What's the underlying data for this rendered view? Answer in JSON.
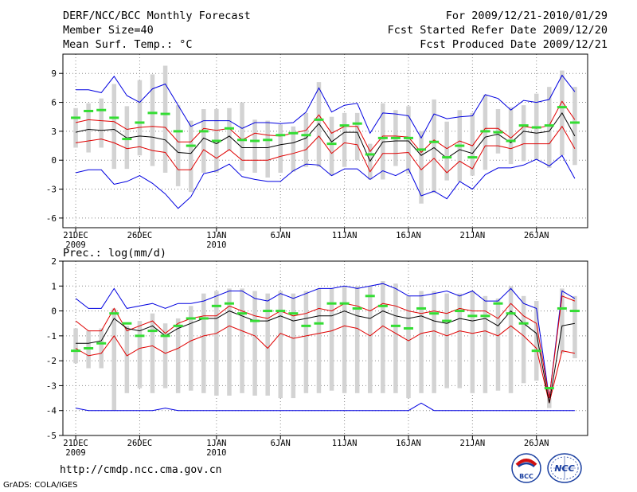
{
  "header": {
    "title": "DERF/NCC/BCC Monthly Forecast",
    "member_size": "Member Size=40",
    "variable": "Mean Surf. Temp.: °C",
    "period": "For 2009/12/21-2010/01/29",
    "start_date": "Fcst Started Refer Date 2009/12/20",
    "produced_date": "Fcst Produced Date 2009/12/21"
  },
  "footer": {
    "url": "http://cmdp.ncc.cma.gov.cn",
    "grads": "GrADS: COLA/IGES"
  },
  "logos": {
    "bcc": "BCC",
    "ncc": "NCC"
  },
  "colors": {
    "box": "#d3d3d3",
    "median": "#000000",
    "quartile": "#e00000",
    "extreme": "#0000e0",
    "observed": "#33dd33"
  },
  "chart_data": [
    {
      "type": "boxplot",
      "title": "Mean Surf. Temp.: °C",
      "ylim": [
        -7,
        11
      ],
      "yticks": [
        -6,
        -3,
        0,
        3,
        6,
        9
      ],
      "ytick_labels": [
        "-6",
        "-3",
        "0",
        "3",
        "6",
        "9"
      ],
      "xlim": [
        0,
        41
      ],
      "xtick_positions": [
        1,
        6,
        12,
        17,
        22,
        27,
        32,
        37
      ],
      "xtick_labels": [
        "21DEC",
        "26DEC",
        "1JAN",
        "6JAN",
        "11JAN",
        "16JAN",
        "21JAN",
        "26JAN"
      ],
      "xtick_sublabels": [
        "2009",
        "",
        "2010",
        "",
        "",
        "",
        "",
        ""
      ],
      "days": 40,
      "max": [
        7.3,
        7.3,
        7.0,
        8.7,
        6.7,
        6.0,
        7.4,
        7.9,
        5.7,
        3.5,
        4.1,
        4.1,
        4.1,
        3.3,
        3.9,
        3.9,
        3.8,
        3.9,
        5.0,
        7.5,
        5.0,
        5.7,
        5.9,
        2.8,
        4.9,
        4.8,
        4.6,
        2.3,
        4.8,
        4.3,
        4.5,
        4.6,
        6.8,
        6.4,
        5.2,
        6.2,
        6.0,
        6.3,
        8.8,
        7.1
      ],
      "q3": [
        3.9,
        4.2,
        4.1,
        4.0,
        3.2,
        3.4,
        3.5,
        3.4,
        1.9,
        1.9,
        3.3,
        3.1,
        3.3,
        2.1,
        2.8,
        2.6,
        2.5,
        2.8,
        3.1,
        4.7,
        2.8,
        3.5,
        3.5,
        0.9,
        2.5,
        2.5,
        2.4,
        0.8,
        2.1,
        1.2,
        2.0,
        1.5,
        3.3,
        3.3,
        2.3,
        3.5,
        3.3,
        3.6,
        6.1,
        4.2
      ],
      "median": [
        2.9,
        3.2,
        3.1,
        3.2,
        2.3,
        2.5,
        2.4,
        2.1,
        0.8,
        0.7,
        2.3,
        1.7,
        2.5,
        1.3,
        1.3,
        1.3,
        1.6,
        1.8,
        2.3,
        3.8,
        1.9,
        2.9,
        2.9,
        -0.1,
        1.9,
        2.0,
        2.0,
        0.5,
        1.3,
        0.2,
        1.1,
        0.7,
        2.4,
        2.7,
        1.8,
        3.0,
        2.8,
        3.0,
        4.9,
        2.5
      ],
      "q1": [
        1.8,
        2.0,
        2.2,
        1.8,
        1.2,
        1.4,
        1.0,
        0.8,
        -1.0,
        -1.0,
        1.1,
        0.2,
        1.1,
        0.0,
        0.0,
        0.0,
        0.4,
        0.7,
        1.1,
        2.5,
        0.7,
        1.8,
        1.6,
        -1.2,
        0.7,
        0.7,
        0.8,
        -1.0,
        0.2,
        -1.3,
        -0.1,
        -0.9,
        1.5,
        1.5,
        1.2,
        1.7,
        1.7,
        1.7,
        3.5,
        1.2
      ],
      "min": [
        -1.3,
        -1.0,
        -1.0,
        -2.5,
        -2.2,
        -1.6,
        -2.4,
        -3.5,
        -5.0,
        -3.8,
        -1.4,
        -1.1,
        -0.4,
        -1.7,
        -2.0,
        -2.2,
        -2.2,
        -1.1,
        -0.4,
        -0.5,
        -1.6,
        -0.9,
        -0.9,
        -2.0,
        -1.1,
        -1.6,
        -0.9,
        -3.7,
        -3.2,
        -4.0,
        -2.2,
        -3.0,
        -1.5,
        -0.8,
        -0.8,
        -0.5,
        0.1,
        -0.6,
        0.5,
        -1.9
      ],
      "box_top": [
        5.4,
        5.9,
        6.4,
        7.9,
        5.6,
        8.3,
        8.9,
        9.8,
        5.7,
        4.1,
        5.3,
        5.3,
        5.4,
        6.0,
        4.2,
        4.1,
        3.7,
        3.5,
        4.9,
        8.1,
        4.5,
        4.9,
        4.9,
        1.7,
        5.9,
        5.2,
        5.6,
        3.0,
        6.3,
        4.0,
        5.2,
        4.9,
        6.8,
        5.3,
        5.5,
        5.7,
        6.9,
        7.6,
        9.3,
        7.6
      ],
      "box_bottom": [
        1.3,
        0.8,
        1.3,
        -0.9,
        -0.9,
        0.5,
        -0.6,
        -1.3,
        -2.7,
        -3.3,
        -1.3,
        -1.3,
        1.0,
        -1.1,
        -1.3,
        -1.8,
        -1.3,
        -1.2,
        -0.7,
        -0.7,
        -1.6,
        -0.7,
        0.0,
        -2.0,
        -2.0,
        -0.6,
        -1.4,
        -4.5,
        -3.4,
        -2.1,
        -2.2,
        -1.6,
        -1.0,
        0.7,
        -0.4,
        -0.1,
        0.0,
        -0.8,
        0.5,
        -0.5
      ],
      "observed": [
        4.4,
        5.1,
        5.2,
        4.4,
        2.2,
        3.9,
        4.9,
        4.8,
        3.0,
        1.5,
        3.0,
        2.0,
        3.3,
        2.1,
        2.0,
        2.1,
        2.6,
        2.8,
        2.6,
        4.2,
        1.7,
        3.6,
        3.8,
        0.6,
        2.3,
        2.3,
        2.3,
        1.1,
        1.9,
        0.3,
        1.5,
        0.3,
        3.0,
        2.9,
        2.0,
        3.6,
        3.4,
        3.6,
        5.5,
        3.9
      ]
    },
    {
      "type": "boxplot",
      "title": "Prec.: log(mm/d)",
      "ylim": [
        -5,
        2
      ],
      "yticks": [
        -5,
        -4,
        -3,
        -2,
        -1,
        0,
        1,
        2
      ],
      "ytick_labels": [
        "-5",
        "-4",
        "-3",
        "-2",
        "-1",
        "0",
        "1",
        "2"
      ],
      "xlim": [
        0,
        41
      ],
      "xtick_positions": [
        1,
        6,
        12,
        17,
        22,
        27,
        32,
        37
      ],
      "xtick_labels": [
        "21DEC",
        "26DEC",
        "1JAN",
        "6JAN",
        "11JAN",
        "16JAN",
        "21JAN",
        "26JAN"
      ],
      "xtick_sublabels": [
        "2009",
        "",
        "2010",
        "",
        "",
        "",
        "",
        ""
      ],
      "days": 40,
      "max": [
        0.5,
        0.1,
        0.1,
        0.9,
        0.1,
        0.2,
        0.3,
        0.1,
        0.3,
        0.3,
        0.4,
        0.6,
        0.8,
        0.8,
        0.5,
        0.4,
        0.7,
        0.5,
        0.7,
        0.9,
        0.9,
        1.0,
        0.9,
        1.0,
        1.1,
        0.9,
        0.6,
        0.6,
        0.7,
        0.8,
        0.6,
        0.8,
        0.4,
        0.4,
        0.9,
        0.3,
        0.1,
        -3.5,
        0.8,
        0.5
      ],
      "q3": [
        -0.4,
        -0.8,
        -0.8,
        0.1,
        -0.8,
        -0.6,
        -0.4,
        -0.9,
        -0.5,
        -0.3,
        -0.2,
        -0.2,
        0.2,
        0.0,
        -0.2,
        -0.3,
        0.0,
        -0.2,
        -0.1,
        0.1,
        0.0,
        0.3,
        0.2,
        0.0,
        0.3,
        0.2,
        0.0,
        -0.1,
        0.0,
        -0.1,
        0.1,
        0.0,
        0.0,
        -0.3,
        0.3,
        -0.2,
        -0.5,
        -3.5,
        0.6,
        0.4
      ],
      "median": [
        -1.3,
        -1.3,
        -1.2,
        -0.3,
        -0.7,
        -0.8,
        -0.6,
        -1.0,
        -0.7,
        -0.5,
        -0.3,
        -0.3,
        0.0,
        -0.2,
        -0.4,
        -0.4,
        -0.2,
        -0.4,
        -0.3,
        -0.2,
        -0.2,
        0.0,
        -0.2,
        -0.3,
        0.0,
        -0.2,
        -0.3,
        -0.2,
        -0.4,
        -0.5,
        -0.3,
        -0.4,
        -0.3,
        -0.6,
        0.0,
        -0.5,
        -0.9,
        -3.7,
        -0.6,
        -0.5
      ],
      "q1": [
        -1.5,
        -1.8,
        -1.7,
        -1.0,
        -1.8,
        -1.5,
        -1.4,
        -1.7,
        -1.5,
        -1.2,
        -1.0,
        -0.9,
        -0.6,
        -0.8,
        -1.0,
        -1.5,
        -0.9,
        -1.1,
        -1.0,
        -0.9,
        -0.8,
        -0.6,
        -0.7,
        -1.0,
        -0.6,
        -0.9,
        -1.2,
        -0.9,
        -0.8,
        -1.0,
        -0.8,
        -0.9,
        -0.8,
        -1.0,
        -0.6,
        -1.0,
        -1.5,
        -3.7,
        -1.6,
        -1.7
      ],
      "min": [
        -3.9,
        -4.0,
        -4.0,
        -4.0,
        -4.0,
        -4.0,
        -4.0,
        -3.9,
        -4.0,
        -4.0,
        -4.0,
        -4.0,
        -4.0,
        -4.0,
        -4.0,
        -4.0,
        -4.0,
        -4.0,
        -4.0,
        -4.0,
        -4.0,
        -4.0,
        -4.0,
        -4.0,
        -4.0,
        -4.0,
        -4.0,
        -3.7,
        -4.0,
        -4.0,
        -4.0,
        -4.0,
        -4.0,
        -4.0,
        -4.0,
        -4.0,
        -4.0,
        -4.0,
        -4.0,
        -4.0
      ],
      "box_top": [
        -0.7,
        -0.8,
        -0.7,
        0.1,
        -0.6,
        -0.4,
        -0.1,
        -0.5,
        -0.3,
        0.2,
        0.7,
        0.8,
        0.9,
        0.9,
        0.8,
        0.7,
        0.8,
        0.7,
        0.8,
        0.9,
        0.9,
        1.0,
        1.0,
        1.0,
        1.2,
        1.1,
        0.6,
        0.8,
        0.8,
        0.7,
        0.7,
        0.8,
        0.6,
        0.5,
        1.0,
        0.6,
        0.4,
        -3.5,
        0.9,
        0.6
      ],
      "box_bottom": [
        -2.1,
        -2.3,
        -2.3,
        -4.0,
        -3.3,
        -3.1,
        -3.3,
        -3.1,
        -3.3,
        -3.2,
        -3.3,
        -3.4,
        -3.4,
        -3.3,
        -3.4,
        -3.4,
        -3.5,
        -3.5,
        -3.3,
        -3.3,
        -3.2,
        -3.3,
        -3.3,
        -3.3,
        -3.3,
        -3.3,
        -3.5,
        -3.3,
        -3.3,
        -3.1,
        -3.1,
        -3.3,
        -3.3,
        -3.2,
        -3.3,
        -2.9,
        -2.8,
        -3.9,
        -1.7,
        -1.9
      ],
      "observed": [
        -1.6,
        -1.5,
        -1.3,
        -0.1,
        -0.5,
        -1.0,
        -0.8,
        -1.0,
        -0.6,
        -0.3,
        -0.3,
        0.2,
        0.3,
        -0.1,
        -0.4,
        0.0,
        0.0,
        -0.1,
        -0.6,
        -0.5,
        0.3,
        0.3,
        0.1,
        0.6,
        0.2,
        -0.6,
        -0.7,
        0.1,
        -0.1,
        -0.4,
        0.0,
        -0.2,
        -0.2,
        0.3,
        -0.1,
        -0.5,
        -1.6,
        -3.1,
        0.1,
        0.0
      ]
    }
  ]
}
